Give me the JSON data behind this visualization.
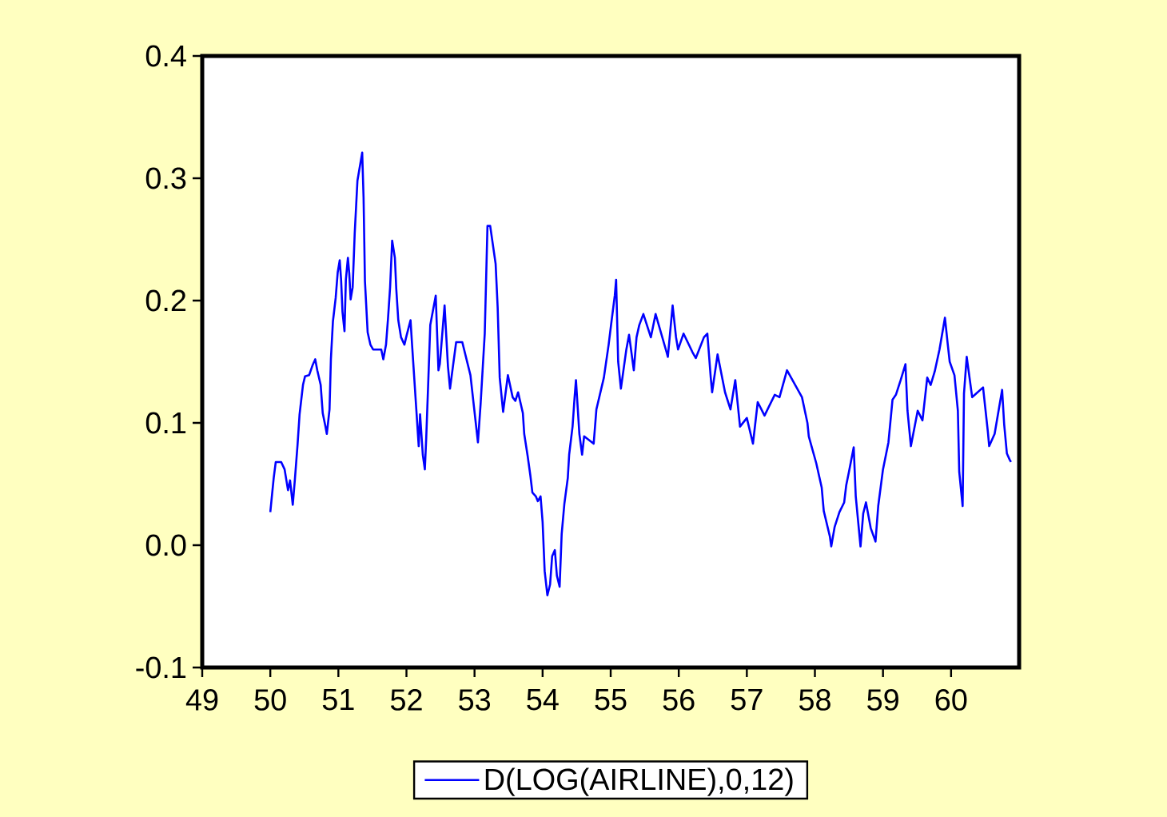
{
  "chart_data": {
    "type": "line",
    "xlim": [
      49,
      61
    ],
    "xticks": [
      49,
      50,
      51,
      52,
      53,
      54,
      55,
      56,
      57,
      58,
      59,
      60
    ],
    "ylim": [
      -0.1,
      0.4
    ],
    "yticks": [
      -0.1,
      {
        "value": 0,
        "label": "0.0"
      },
      0.1,
      0.2,
      0.3,
      0.4
    ],
    "legend": "bottom",
    "line_style": "solid",
    "series": [
      {
        "name": "D(LOG(AIRLINE),0,12)",
        "color": "#0000ff",
        "x": [
          50.0,
          50.05,
          50.08,
          50.16,
          50.21,
          50.26,
          50.29,
          50.33,
          50.36,
          50.4,
          50.43,
          50.48,
          50.51,
          50.57,
          50.62,
          50.66,
          50.69,
          50.74,
          50.77,
          50.81,
          50.83,
          50.87,
          50.89,
          50.92,
          50.96,
          50.99,
          51.02,
          51.04,
          51.06,
          51.09,
          51.11,
          51.14,
          51.16,
          51.18,
          51.21,
          51.24,
          51.28,
          51.35,
          51.37,
          51.39,
          51.43,
          51.47,
          51.51,
          51.63,
          51.66,
          51.7,
          51.73,
          51.76,
          51.79,
          51.83,
          51.85,
          51.88,
          51.92,
          51.97,
          52.0,
          52.06,
          52.08,
          52.12,
          52.18,
          52.2,
          52.24,
          52.27,
          52.29,
          52.32,
          52.35,
          52.43,
          52.47,
          52.49,
          52.56,
          52.61,
          52.64,
          52.68,
          52.73,
          52.82,
          52.94,
          53.05,
          53.09,
          53.15,
          53.19,
          53.23,
          53.31,
          53.34,
          53.37,
          53.42,
          53.49,
          53.56,
          53.6,
          53.64,
          53.71,
          53.73,
          53.78,
          53.82,
          53.85,
          53.9,
          53.93,
          53.97,
          54.0,
          54.03,
          54.07,
          54.11,
          54.14,
          54.18,
          54.21,
          54.25,
          54.28,
          54.32,
          54.37,
          54.39,
          54.44,
          54.47,
          54.49,
          54.54,
          54.58,
          54.61,
          54.75,
          54.79,
          54.9,
          54.97,
          55.01,
          55.06,
          55.08,
          55.11,
          55.15,
          55.23,
          55.27,
          55.34,
          55.38,
          55.42,
          55.48,
          55.59,
          55.66,
          55.82,
          55.84,
          55.91,
          55.96,
          55.99,
          56.07,
          56.2,
          56.25,
          56.37,
          56.42,
          56.47,
          56.49,
          56.57,
          56.68,
          56.76,
          56.83,
          56.9,
          57.0,
          57.09,
          57.16,
          57.26,
          57.41,
          57.48,
          57.59,
          57.81,
          57.89,
          57.91,
          57.95,
          58.02,
          58.1,
          58.13,
          58.22,
          58.24,
          58.29,
          58.36,
          58.43,
          58.46,
          58.5,
          58.57,
          58.6,
          58.67,
          58.71,
          58.75,
          58.82,
          58.89,
          58.93,
          59.0,
          59.08,
          59.14,
          59.19,
          59.26,
          59.33,
          59.36,
          59.41,
          59.51,
          59.58,
          59.65,
          59.7,
          59.76,
          59.83,
          59.91,
          59.95,
          59.98,
          60.05,
          60.1,
          60.12,
          60.17,
          60.19,
          60.23,
          60.31,
          60.35,
          60.47,
          60.54,
          60.56,
          60.64,
          60.75,
          60.78,
          60.82,
          60.86,
          60.88
        ],
        "values": [
          0.027,
          0.055,
          0.068,
          0.068,
          0.062,
          0.045,
          0.053,
          0.033,
          0.053,
          0.082,
          0.107,
          0.131,
          0.138,
          0.139,
          0.147,
          0.152,
          0.143,
          0.131,
          0.108,
          0.097,
          0.091,
          0.111,
          0.152,
          0.183,
          0.202,
          0.223,
          0.233,
          0.217,
          0.191,
          0.175,
          0.217,
          0.235,
          0.222,
          0.201,
          0.211,
          0.255,
          0.298,
          0.321,
          0.284,
          0.216,
          0.174,
          0.164,
          0.16,
          0.16,
          0.152,
          0.164,
          0.186,
          0.211,
          0.249,
          0.235,
          0.21,
          0.184,
          0.17,
          0.164,
          0.171,
          0.184,
          0.166,
          0.132,
          0.081,
          0.107,
          0.074,
          0.062,
          0.087,
          0.133,
          0.18,
          0.204,
          0.143,
          0.148,
          0.196,
          0.146,
          0.128,
          0.145,
          0.166,
          0.166,
          0.139,
          0.084,
          0.116,
          0.173,
          0.261,
          0.261,
          0.23,
          0.194,
          0.137,
          0.109,
          0.139,
          0.121,
          0.118,
          0.125,
          0.108,
          0.091,
          0.073,
          0.057,
          0.043,
          0.04,
          0.036,
          0.04,
          0.019,
          -0.021,
          -0.041,
          -0.032,
          -0.009,
          -0.004,
          -0.025,
          -0.034,
          0.009,
          0.034,
          0.055,
          0.074,
          0.097,
          0.121,
          0.135,
          0.091,
          0.074,
          0.089,
          0.083,
          0.111,
          0.137,
          0.164,
          0.182,
          0.204,
          0.217,
          0.15,
          0.128,
          0.16,
          0.172,
          0.143,
          0.17,
          0.18,
          0.189,
          0.17,
          0.189,
          0.158,
          0.154,
          0.196,
          0.17,
          0.16,
          0.173,
          0.158,
          0.153,
          0.17,
          0.173,
          0.137,
          0.125,
          0.156,
          0.125,
          0.111,
          0.135,
          0.097,
          0.104,
          0.083,
          0.117,
          0.106,
          0.123,
          0.121,
          0.143,
          0.121,
          0.1,
          0.089,
          0.081,
          0.067,
          0.047,
          0.028,
          0.007,
          -0.001,
          0.015,
          0.027,
          0.035,
          0.049,
          0.06,
          0.08,
          0.04,
          -0.001,
          0.026,
          0.035,
          0.014,
          0.003,
          0.032,
          0.062,
          0.084,
          0.119,
          0.123,
          0.135,
          0.148,
          0.11,
          0.081,
          0.11,
          0.102,
          0.137,
          0.131,
          0.142,
          0.16,
          0.186,
          0.165,
          0.15,
          0.139,
          0.11,
          0.06,
          0.032,
          0.124,
          0.154,
          0.121,
          0.123,
          0.129,
          0.093,
          0.081,
          0.091,
          0.127,
          0.099,
          0.075,
          0.07,
          0.068
        ]
      }
    ]
  }
}
